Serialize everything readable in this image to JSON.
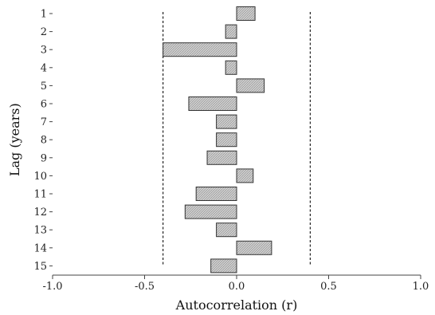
{
  "chart_data": {
    "type": "bar",
    "orientation": "horizontal",
    "xlabel": "Autocorrelation (r)",
    "ylabel": "Lag (years)",
    "xlim": [
      -1.0,
      1.0
    ],
    "x_ticks": [
      -1.0,
      -0.5,
      0.0,
      0.5,
      1.0
    ],
    "x_tick_labels": [
      "-1.0",
      "-0.5",
      "0.0",
      "0.5",
      "1.0"
    ],
    "categories": [
      "1",
      "2",
      "3",
      "4",
      "5",
      "6",
      "7",
      "8",
      "9",
      "10",
      "11",
      "12",
      "13",
      "14",
      "15"
    ],
    "values": [
      0.1,
      -0.06,
      -0.4,
      -0.06,
      0.15,
      -0.26,
      -0.11,
      -0.11,
      -0.16,
      0.09,
      -0.22,
      -0.28,
      -0.11,
      0.19,
      -0.14
    ],
    "confidence_bounds": [
      -0.4,
      0.4
    ],
    "bar_fill": "#c8c8c8",
    "bar_stroke": "#333333",
    "grid": false,
    "legend": "none"
  }
}
